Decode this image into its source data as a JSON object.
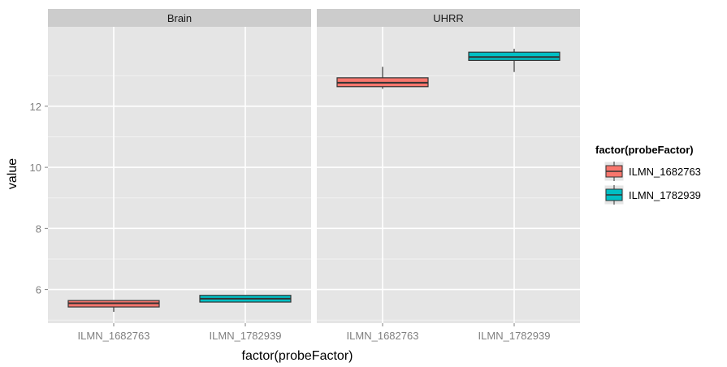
{
  "chart_data": {
    "type": "boxplot",
    "xlabel": "factor(probeFactor)",
    "ylabel": "value",
    "ylim": [
      4.9,
      14.6
    ],
    "yticks": [
      6,
      8,
      10,
      12
    ],
    "categories": [
      "ILMN_1682763",
      "ILMN_1782939"
    ],
    "panels": [
      {
        "label": "Brain",
        "boxes": [
          {
            "category": "ILMN_1682763",
            "fill": "#F8766D",
            "whisker_low": 5.27,
            "q1": 5.43,
            "median": 5.55,
            "q3": 5.64,
            "whisker_high": 5.64
          },
          {
            "category": "ILMN_1782939",
            "fill": "#00BFC4",
            "whisker_low": 5.59,
            "q1": 5.59,
            "median": 5.7,
            "q3": 5.81,
            "whisker_high": 5.81
          }
        ]
      },
      {
        "label": "UHRR",
        "boxes": [
          {
            "category": "ILMN_1682763",
            "fill": "#F8766D",
            "whisker_low": 12.57,
            "q1": 12.64,
            "median": 12.77,
            "q3": 12.93,
            "whisker_high": 13.29
          },
          {
            "category": "ILMN_1782939",
            "fill": "#00BFC4",
            "whisker_low": 13.12,
            "q1": 13.5,
            "median": 13.61,
            "q3": 13.77,
            "whisker_high": 13.88
          }
        ]
      }
    ],
    "legend": {
      "title": "factor(probeFactor)",
      "position": "right",
      "entries": [
        {
          "label": "ILMN_1682763",
          "fill": "#F8766D"
        },
        {
          "label": "ILMN_1782939",
          "fill": "#00BFC4"
        }
      ]
    },
    "grid": true,
    "colors": {
      "panel_bg": "#E5E5E5",
      "strip_bg": "#CCCCCC",
      "grid_major": "#FFFFFF",
      "grid_minor": "#F2F2F2",
      "tick_text": "#7F7F7F"
    }
  }
}
